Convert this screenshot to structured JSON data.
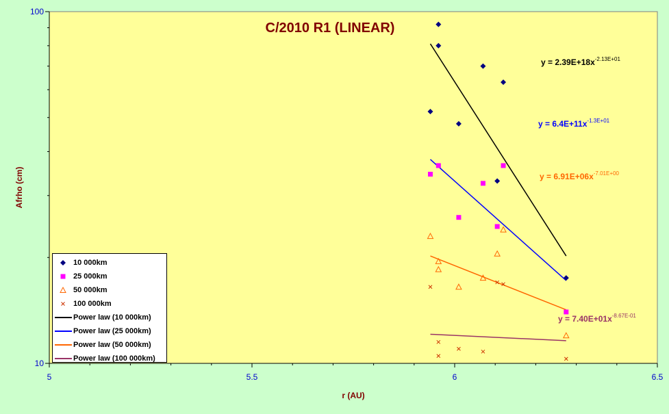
{
  "chart_data": {
    "type": "scatter",
    "title": "C/2010 R1 (LINEAR)",
    "xlabel": "r (AU)",
    "ylabel": "Afrho (cm)",
    "xlim": [
      5,
      6.5
    ],
    "ylim": [
      10,
      100
    ],
    "yscale": "log",
    "x_ticks": [
      "5",
      "5.5",
      "6",
      "6.5"
    ],
    "y_ticks": [
      "10",
      "100"
    ],
    "grid": false,
    "legend_position": "bottom-left",
    "background": "#ffff99",
    "outer_background": "#ccffcc",
    "series": [
      {
        "name": "10 000km",
        "marker": "diamond",
        "color": "#000080",
        "points": [
          [
            5.94,
            52.0
          ],
          [
            5.96,
            92.0
          ],
          [
            5.96,
            80.0
          ],
          [
            6.01,
            48.0
          ],
          [
            6.07,
            70.0
          ],
          [
            6.105,
            33.0
          ],
          [
            6.12,
            63.0
          ],
          [
            6.275,
            17.5
          ]
        ]
      },
      {
        "name": "25 000km",
        "marker": "square",
        "color": "#ff00ff",
        "points": [
          [
            5.94,
            34.5
          ],
          [
            5.96,
            36.5
          ],
          [
            6.01,
            26.0
          ],
          [
            6.07,
            32.5
          ],
          [
            6.105,
            24.5
          ],
          [
            6.12,
            36.5
          ],
          [
            6.275,
            14.0
          ]
        ]
      },
      {
        "name": "50 000km",
        "marker": "triangle",
        "color": "#ff6600",
        "points": [
          [
            5.94,
            23.0
          ],
          [
            5.96,
            19.5
          ],
          [
            5.96,
            18.5
          ],
          [
            6.01,
            16.5
          ],
          [
            6.07,
            17.5
          ],
          [
            6.105,
            20.5
          ],
          [
            6.12,
            24.0
          ],
          [
            6.275,
            12.0
          ]
        ]
      },
      {
        "name": "100 000km",
        "marker": "x",
        "color": "#cc3300",
        "points": [
          [
            5.94,
            16.5
          ],
          [
            5.96,
            11.5
          ],
          [
            5.96,
            10.5
          ],
          [
            6.01,
            11.0
          ],
          [
            6.07,
            10.8
          ],
          [
            6.105,
            17.0
          ],
          [
            6.12,
            16.8
          ],
          [
            6.275,
            10.3
          ]
        ]
      }
    ],
    "trendlines": [
      {
        "name": "Power law (10 000km)",
        "color": "#000000",
        "coef": "2.39E+18",
        "exp": "-2.13E+01",
        "label": "y = 2.39E+18x",
        "label_exp": "-2.13E+01",
        "label_color": "#000000",
        "x_range": [
          5.94,
          6.275
        ],
        "y_range": [
          81.0,
          20.2
        ]
      },
      {
        "name": "Power law (25 000km)",
        "color": "#0000ff",
        "coef": "6.4E+11",
        "exp": "-1.3E+01",
        "label": "y = 6.4E+11x",
        "label_exp": "-1.3E+01",
        "label_color": "#0000ff",
        "x_range": [
          5.94,
          6.275
        ],
        "y_range": [
          38.0,
          17.2
        ]
      },
      {
        "name": "Power law (50 000km)",
        "color": "#ff6600",
        "coef": "6.91E+06",
        "exp": "-7.01E+00",
        "label": "y = 6.91E+06x",
        "label_exp": "-7.01E+00",
        "label_color": "#ff6600",
        "x_range": [
          5.94,
          6.275
        ],
        "y_range": [
          20.2,
          14.2
        ]
      },
      {
        "name": "Power law (100 000km)",
        "color": "#993366",
        "coef": "7.40E+01",
        "exp": "-8.67E-01",
        "label": "y = 7.40E+01x",
        "label_exp": "-8.67E-01",
        "label_color": "#993366",
        "x_range": [
          5.94,
          6.275
        ],
        "y_range": [
          12.1,
          11.6
        ]
      }
    ]
  }
}
